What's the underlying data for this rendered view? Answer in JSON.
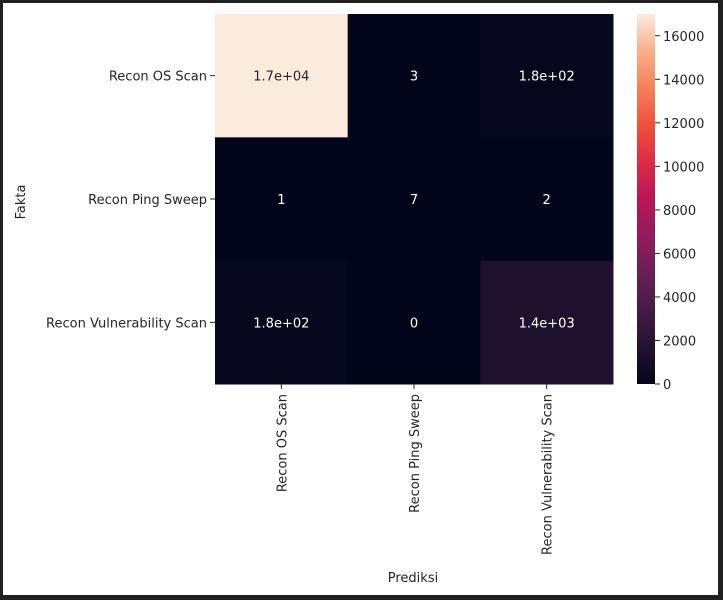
{
  "chart_data": {
    "type": "heatmap",
    "title": "",
    "xlabel": "Prediksi",
    "ylabel": "Fakta",
    "x_categories": [
      "Recon OS Scan",
      "Recon Ping Sweep",
      "Recon Vulnerability Scan"
    ],
    "y_categories": [
      "Recon OS Scan",
      "Recon Ping Sweep",
      "Recon Vulnerability Scan"
    ],
    "values": [
      [
        17000,
        3,
        180
      ],
      [
        1,
        7,
        2
      ],
      [
        180,
        0,
        1400
      ]
    ],
    "annotations": [
      [
        "1.7e+04",
        "3",
        "1.8e+02"
      ],
      [
        "1",
        "7",
        "2"
      ],
      [
        "1.8e+02",
        "0",
        "1.4e+03"
      ]
    ],
    "colorbar": {
      "colormap": "rocket",
      "range": [
        0,
        17000
      ],
      "ticks": [
        0,
        2000,
        4000,
        6000,
        8000,
        10000,
        12000,
        14000,
        16000
      ]
    }
  }
}
